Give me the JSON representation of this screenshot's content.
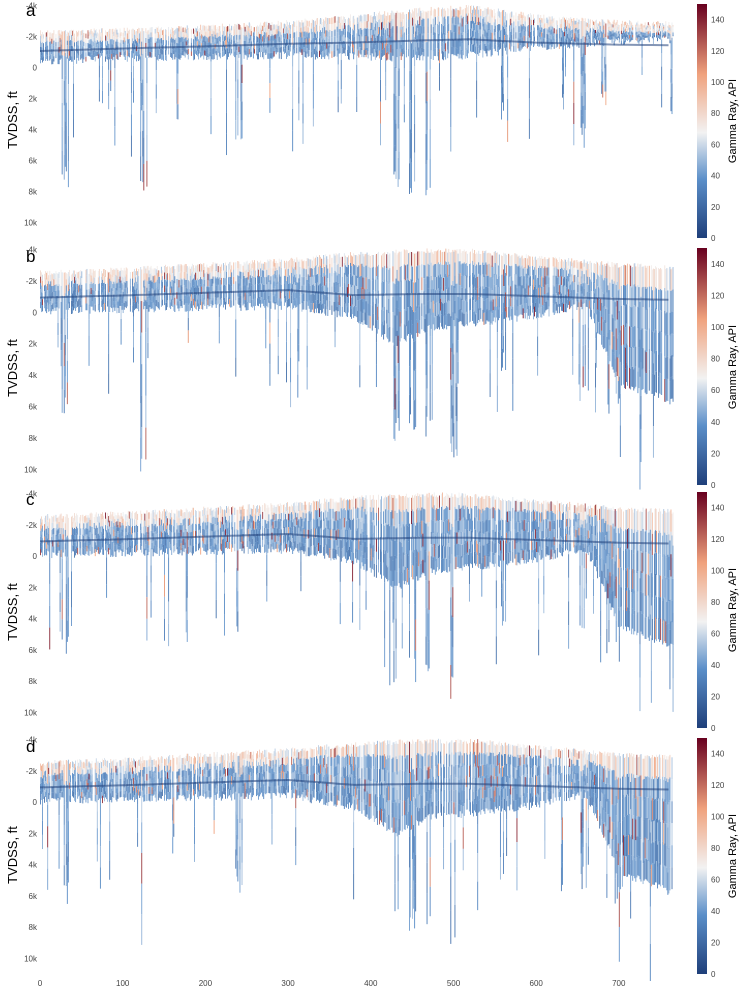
{
  "colors": {
    "low": "#1f3f7a",
    "mid_low": "#5b8fc9",
    "mid": "#f2f2f2",
    "mid_high": "#f0a27d",
    "high": "#67001f"
  },
  "chart_data": [
    {
      "type": "heatmap",
      "panel_label": "a",
      "ylabel": "TVDSS, ft",
      "colorbar_label": "Gamma Ray, API",
      "x_ticks": [],
      "y_ticks": [
        "-4k",
        "-2k",
        "0",
        "2k",
        "4k",
        "6k",
        "8k",
        "10k"
      ],
      "y_tick_values": [
        -4000,
        -2000,
        0,
        2000,
        4000,
        6000,
        8000,
        10000
      ],
      "colorbar_ticks": [
        "0",
        "20",
        "40",
        "60",
        "80",
        "100",
        "120",
        "140"
      ],
      "colorbar_tick_values": [
        0,
        20,
        40,
        60,
        80,
        100,
        120,
        140
      ],
      "xlim": [
        0,
        780
      ],
      "ylim": [
        11000,
        -4100
      ],
      "clim": [
        0,
        150
      ],
      "top_profile": [
        [
          0,
          -2300
        ],
        [
          100,
          -2400
        ],
        [
          200,
          -2600
        ],
        [
          300,
          -2900
        ],
        [
          380,
          -3300
        ],
        [
          460,
          -3700
        ],
        [
          520,
          -3900
        ],
        [
          600,
          -3300
        ],
        [
          700,
          -2900
        ],
        [
          780,
          -2800
        ]
      ],
      "bottom_profile": [
        [
          0,
          -400
        ],
        [
          100,
          -600
        ],
        [
          200,
          -700
        ],
        [
          300,
          -800
        ],
        [
          380,
          -700
        ],
        [
          460,
          -600
        ],
        [
          520,
          -800
        ],
        [
          600,
          -1300
        ],
        [
          700,
          -1700
        ],
        [
          780,
          -1800
        ]
      ],
      "deep_wells": [
        [
          30,
          8000
        ],
        [
          125,
          8200
        ],
        [
          240,
          5000
        ],
        [
          430,
          8300
        ],
        [
          450,
          8600
        ],
        [
          470,
          8600
        ],
        [
          500,
          6900
        ],
        [
          560,
          3500
        ],
        [
          655,
          5400
        ],
        [
          680,
          3200
        ],
        [
          760,
          4000
        ]
      ]
    },
    {
      "type": "heatmap",
      "panel_label": "b",
      "ylabel": "TVDSS, ft",
      "colorbar_label": "Gamma Ray, API",
      "x_ticks": [],
      "y_ticks": [
        "-4k",
        "-2k",
        "0",
        "2k",
        "4k",
        "6k",
        "8k",
        "10k"
      ],
      "y_tick_values": [
        -4000,
        -2000,
        0,
        2000,
        4000,
        6000,
        8000,
        10000
      ],
      "colorbar_ticks": [
        "0",
        "20",
        "40",
        "60",
        "80",
        "100",
        "120",
        "140"
      ],
      "colorbar_tick_values": [
        0,
        20,
        40,
        60,
        80,
        100,
        120,
        140
      ],
      "xlim": [
        0,
        780
      ],
      "ylim": [
        11000,
        -4100
      ],
      "clim": [
        0,
        150
      ],
      "top_profile": [
        [
          0,
          -2500
        ],
        [
          100,
          -2700
        ],
        [
          200,
          -3000
        ],
        [
          300,
          -3300
        ],
        [
          380,
          -3700
        ],
        [
          460,
          -3900
        ],
        [
          520,
          -3900
        ],
        [
          600,
          -3500
        ],
        [
          700,
          -3000
        ],
        [
          780,
          -2800
        ]
      ],
      "bottom_profile": [
        [
          0,
          -100
        ],
        [
          100,
          -200
        ],
        [
          200,
          -300
        ],
        [
          300,
          -400
        ],
        [
          380,
          300
        ],
        [
          430,
          2000
        ],
        [
          470,
          1000
        ],
        [
          520,
          700
        ],
        [
          600,
          200
        ],
        [
          660,
          -500
        ],
        [
          700,
          4500
        ],
        [
          780,
          6000
        ]
      ],
      "deep_wells": [
        [
          30,
          6800
        ],
        [
          125,
          10900
        ],
        [
          240,
          5800
        ],
        [
          430,
          8200
        ],
        [
          450,
          8300
        ],
        [
          470,
          8300
        ],
        [
          500,
          9300
        ],
        [
          560,
          5000
        ],
        [
          655,
          5800
        ],
        [
          700,
          6000
        ],
        [
          760,
          6000
        ]
      ]
    },
    {
      "type": "heatmap",
      "panel_label": "c",
      "ylabel": "TVDSS, ft",
      "colorbar_label": "Gamma Ray, API",
      "x_ticks": [],
      "y_ticks": [
        "-4k",
        "-2k",
        "0",
        "2k",
        "4k",
        "6k",
        "8k",
        "10k"
      ],
      "y_tick_values": [
        -4000,
        -2000,
        0,
        2000,
        4000,
        6000,
        8000,
        10000
      ],
      "colorbar_ticks": [
        "0",
        "20",
        "40",
        "60",
        "80",
        "100",
        "120",
        "140"
      ],
      "colorbar_tick_values": [
        0,
        20,
        40,
        60,
        80,
        100,
        120,
        140
      ],
      "xlim": [
        0,
        780
      ],
      "ylim": [
        11000,
        -4100
      ],
      "clim": [
        0,
        150
      ],
      "top_profile": [
        [
          0,
          -2500
        ],
        [
          100,
          -2700
        ],
        [
          200,
          -3000
        ],
        [
          300,
          -3300
        ],
        [
          380,
          -3700
        ],
        [
          460,
          -3900
        ],
        [
          520,
          -3900
        ],
        [
          600,
          -3500
        ],
        [
          700,
          -3000
        ],
        [
          780,
          -2800
        ]
      ],
      "bottom_profile": [
        [
          0,
          -100
        ],
        [
          100,
          -200
        ],
        [
          200,
          -300
        ],
        [
          300,
          -400
        ],
        [
          380,
          300
        ],
        [
          430,
          2000
        ],
        [
          470,
          1000
        ],
        [
          520,
          700
        ],
        [
          600,
          200
        ],
        [
          660,
          -500
        ],
        [
          700,
          4500
        ],
        [
          780,
          6000
        ]
      ],
      "deep_wells": [
        [
          30,
          6800
        ],
        [
          125,
          10900
        ],
        [
          240,
          5800
        ],
        [
          430,
          8200
        ],
        [
          450,
          8300
        ],
        [
          470,
          8300
        ],
        [
          500,
          9300
        ],
        [
          560,
          5000
        ],
        [
          655,
          5800
        ],
        [
          700,
          6000
        ],
        [
          760,
          6000
        ]
      ]
    },
    {
      "type": "heatmap",
      "panel_label": "d",
      "ylabel": "TVDSS, ft",
      "colorbar_label": "Gamma Ray, API",
      "x_ticks": [
        "0",
        "100",
        "200",
        "300",
        "400",
        "500",
        "600",
        "700"
      ],
      "x_tick_values": [
        0,
        100,
        200,
        300,
        400,
        500,
        600,
        700
      ],
      "y_ticks": [
        "-4k",
        "-2k",
        "0",
        "2k",
        "4k",
        "6k",
        "8k",
        "10k"
      ],
      "y_tick_values": [
        -4000,
        -2000,
        0,
        2000,
        4000,
        6000,
        8000,
        10000
      ],
      "colorbar_ticks": [
        "0",
        "20",
        "40",
        "60",
        "80",
        "100",
        "120",
        "140"
      ],
      "colorbar_tick_values": [
        0,
        20,
        40,
        60,
        80,
        100,
        120,
        140
      ],
      "xlim": [
        0,
        780
      ],
      "ylim": [
        11000,
        -4100
      ],
      "clim": [
        0,
        150
      ],
      "top_profile": [
        [
          0,
          -2500
        ],
        [
          100,
          -2700
        ],
        [
          200,
          -3000
        ],
        [
          300,
          -3300
        ],
        [
          380,
          -3700
        ],
        [
          460,
          -3900
        ],
        [
          520,
          -3900
        ],
        [
          600,
          -3500
        ],
        [
          700,
          -3000
        ],
        [
          780,
          -2800
        ]
      ],
      "bottom_profile": [
        [
          0,
          -100
        ],
        [
          100,
          -200
        ],
        [
          200,
          -300
        ],
        [
          300,
          -400
        ],
        [
          380,
          300
        ],
        [
          430,
          2000
        ],
        [
          470,
          1000
        ],
        [
          520,
          700
        ],
        [
          600,
          200
        ],
        [
          660,
          -500
        ],
        [
          700,
          4500
        ],
        [
          780,
          6000
        ]
      ],
      "deep_wells": [
        [
          30,
          6800
        ],
        [
          125,
          10900
        ],
        [
          240,
          5800
        ],
        [
          430,
          8200
        ],
        [
          450,
          8300
        ],
        [
          470,
          8300
        ],
        [
          500,
          9300
        ],
        [
          560,
          5000
        ],
        [
          655,
          5800
        ],
        [
          700,
          6000
        ],
        [
          760,
          6000
        ]
      ]
    }
  ]
}
